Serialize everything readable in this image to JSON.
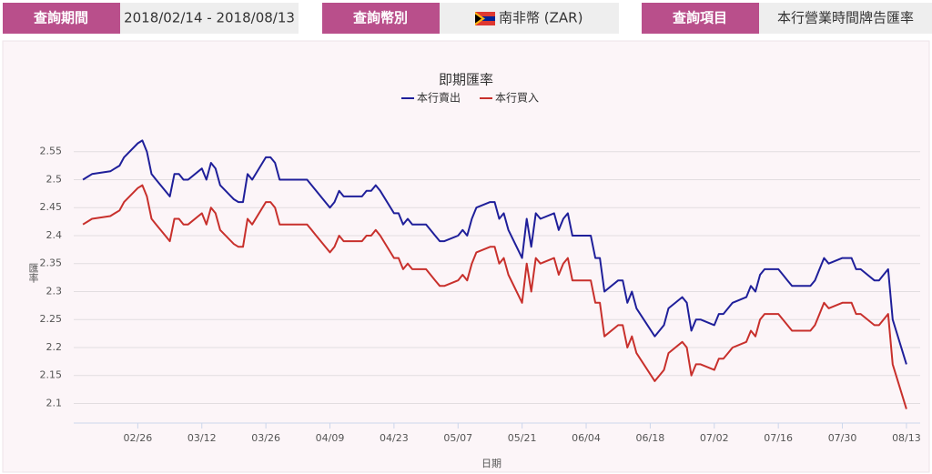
{
  "query": [
    {
      "label": "查詢期間",
      "value": "2018/02/14 - 2018/08/13"
    },
    {
      "label": "查詢幣別",
      "value": "南非幣 (ZAR)"
    },
    {
      "label": "查詢項目",
      "value": "本行營業時間牌告匯率"
    }
  ],
  "chart_data": {
    "type": "line",
    "title": "即期匯率",
    "x_label": "日期",
    "y_label": "匯率",
    "x": [
      "02/14",
      "02/15",
      "02/16",
      "02/20",
      "02/21",
      "02/22",
      "02/23",
      "02/26",
      "02/27",
      "02/28",
      "03/01",
      "03/02",
      "03/05",
      "03/06",
      "03/07",
      "03/08",
      "03/09",
      "03/12",
      "03/13",
      "03/14",
      "03/15",
      "03/16",
      "03/19",
      "03/20",
      "03/21",
      "03/22",
      "03/23",
      "03/26",
      "03/27",
      "03/28",
      "03/29",
      "04/02",
      "04/03",
      "04/04",
      "04/05",
      "04/06",
      "04/09",
      "04/10",
      "04/11",
      "04/12",
      "04/13",
      "04/16",
      "04/17",
      "04/18",
      "04/19",
      "04/20",
      "04/23",
      "04/24",
      "04/25",
      "04/26",
      "04/27",
      "04/30",
      "05/02",
      "05/03",
      "05/04",
      "05/07",
      "05/08",
      "05/09",
      "05/10",
      "05/11",
      "05/14",
      "05/15",
      "05/16",
      "05/17",
      "05/18",
      "05/21",
      "05/22",
      "05/23",
      "05/24",
      "05/25",
      "05/28",
      "05/29",
      "05/30",
      "05/31",
      "06/01",
      "06/04",
      "06/05",
      "06/06",
      "06/07",
      "06/08",
      "06/11",
      "06/12",
      "06/13",
      "06/14",
      "06/15",
      "06/19",
      "06/20",
      "06/21",
      "06/22",
      "06/25",
      "06/26",
      "06/27",
      "06/28",
      "06/29",
      "07/02",
      "07/03",
      "07/04",
      "07/05",
      "07/06",
      "07/09",
      "07/10",
      "07/11",
      "07/12",
      "07/13",
      "07/16",
      "07/17",
      "07/18",
      "07/19",
      "07/20",
      "07/23",
      "07/24",
      "07/25",
      "07/26",
      "07/27",
      "07/30",
      "07/31",
      "08/01",
      "08/02",
      "08/03",
      "08/06",
      "08/07",
      "08/08",
      "08/09",
      "08/10",
      "08/13"
    ],
    "series": [
      {
        "name": "本行賣出",
        "color": "#1f1f9a",
        "values": [
          2.5,
          2.505,
          2.51,
          2.515,
          2.52,
          2.525,
          2.54,
          2.565,
          2.57,
          2.55,
          2.51,
          2.5,
          2.47,
          2.51,
          2.51,
          2.5,
          2.5,
          2.52,
          2.5,
          2.53,
          2.52,
          2.49,
          2.465,
          2.46,
          2.46,
          2.51,
          2.5,
          2.54,
          2.54,
          2.53,
          2.5,
          2.5,
          2.5,
          2.5,
          2.49,
          2.48,
          2.45,
          2.46,
          2.48,
          2.47,
          2.47,
          2.47,
          2.48,
          2.48,
          2.49,
          2.48,
          2.44,
          2.44,
          2.42,
          2.43,
          2.42,
          2.42,
          2.4,
          2.39,
          2.39,
          2.4,
          2.41,
          2.4,
          2.43,
          2.45,
          2.46,
          2.46,
          2.43,
          2.44,
          2.41,
          2.36,
          2.43,
          2.38,
          2.44,
          2.43,
          2.44,
          2.41,
          2.43,
          2.44,
          2.4,
          2.4,
          2.4,
          2.36,
          2.36,
          2.3,
          2.32,
          2.32,
          2.28,
          2.3,
          2.27,
          2.22,
          2.23,
          2.24,
          2.27,
          2.29,
          2.28,
          2.23,
          2.25,
          2.25,
          2.24,
          2.26,
          2.26,
          2.27,
          2.28,
          2.29,
          2.31,
          2.3,
          2.33,
          2.34,
          2.34,
          2.33,
          2.32,
          2.31,
          2.31,
          2.31,
          2.32,
          2.34,
          2.36,
          2.35,
          2.36,
          2.36,
          2.36,
          2.34,
          2.34,
          2.32,
          2.32,
          2.33,
          2.34,
          2.25,
          2.17
        ]
      },
      {
        "name": "本行買入",
        "color": "#c8302c",
        "values": [
          2.42,
          2.425,
          2.43,
          2.435,
          2.44,
          2.445,
          2.46,
          2.485,
          2.49,
          2.47,
          2.43,
          2.42,
          2.39,
          2.43,
          2.43,
          2.42,
          2.42,
          2.44,
          2.42,
          2.45,
          2.44,
          2.41,
          2.385,
          2.38,
          2.38,
          2.43,
          2.42,
          2.46,
          2.46,
          2.45,
          2.42,
          2.42,
          2.42,
          2.42,
          2.41,
          2.4,
          2.37,
          2.38,
          2.4,
          2.39,
          2.39,
          2.39,
          2.4,
          2.4,
          2.41,
          2.4,
          2.36,
          2.36,
          2.34,
          2.35,
          2.34,
          2.34,
          2.32,
          2.31,
          2.31,
          2.32,
          2.33,
          2.32,
          2.35,
          2.37,
          2.38,
          2.38,
          2.35,
          2.36,
          2.33,
          2.28,
          2.35,
          2.3,
          2.36,
          2.35,
          2.36,
          2.33,
          2.35,
          2.36,
          2.32,
          2.32,
          2.32,
          2.28,
          2.28,
          2.22,
          2.24,
          2.24,
          2.2,
          2.22,
          2.19,
          2.14,
          2.15,
          2.16,
          2.19,
          2.21,
          2.2,
          2.15,
          2.17,
          2.17,
          2.16,
          2.18,
          2.18,
          2.19,
          2.2,
          2.21,
          2.23,
          2.22,
          2.25,
          2.26,
          2.26,
          2.25,
          2.24,
          2.23,
          2.23,
          2.23,
          2.24,
          2.26,
          2.28,
          2.27,
          2.28,
          2.28,
          2.28,
          2.26,
          2.26,
          2.24,
          2.24,
          2.25,
          2.26,
          2.17,
          2.09
        ]
      }
    ],
    "xlim": [
      "02/12",
      "08/16"
    ],
    "xticks": [
      "02/26",
      "03/12",
      "03/26",
      "04/09",
      "04/23",
      "05/07",
      "05/21",
      "06/04",
      "06/18",
      "07/02",
      "07/16",
      "07/30",
      "08/13"
    ],
    "ylim": [
      2.065,
      2.6
    ],
    "yticks": [
      2.1,
      2.15,
      2.2,
      2.25,
      2.3,
      2.35,
      2.4,
      2.45,
      2.5,
      2.55
    ],
    "grid": true,
    "legend": "top"
  }
}
